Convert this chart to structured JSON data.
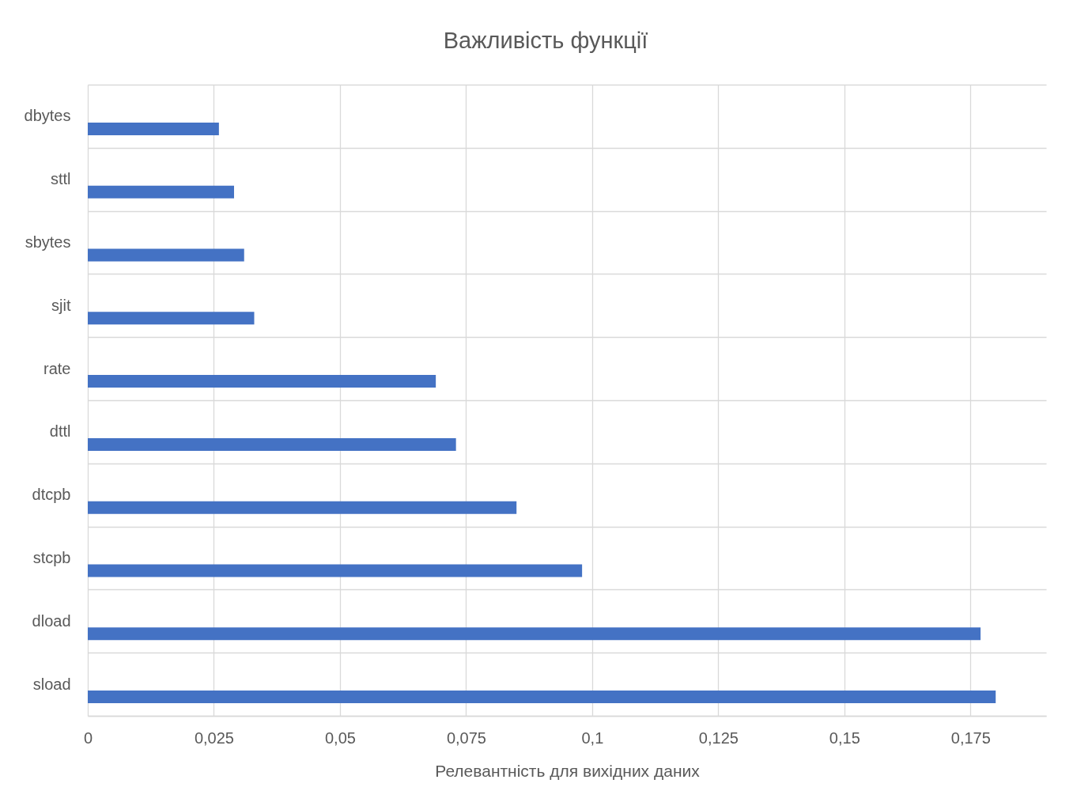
{
  "chart_data": {
    "type": "bar",
    "orientation": "horizontal",
    "title": "Важливість функції",
    "xlabel": "Релевантність для вихідних даних",
    "categories": [
      "dbytes",
      "sttl",
      "sbytes",
      "sjit",
      "rate",
      "dttl",
      "dtcpb",
      "stcpb",
      "dload",
      "sload"
    ],
    "values": [
      0.026,
      0.029,
      0.031,
      0.033,
      0.069,
      0.073,
      0.085,
      0.098,
      0.177,
      0.18
    ],
    "color": "#4472c4",
    "xlim": [
      0,
      0.19
    ],
    "xticks": [
      0,
      {
        "value": 0.025,
        "label": "0,025"
      },
      {
        "value": 0.05,
        "label": "0,05"
      },
      {
        "value": 0.075,
        "label": "0,075"
      },
      {
        "value": 0.1,
        "label": "0,1"
      },
      {
        "value": 0.125,
        "label": "0,125"
      },
      {
        "value": 0.15,
        "label": "0,15"
      },
      {
        "value": 0.175,
        "label": "0,175"
      }
    ],
    "grid": true
  }
}
